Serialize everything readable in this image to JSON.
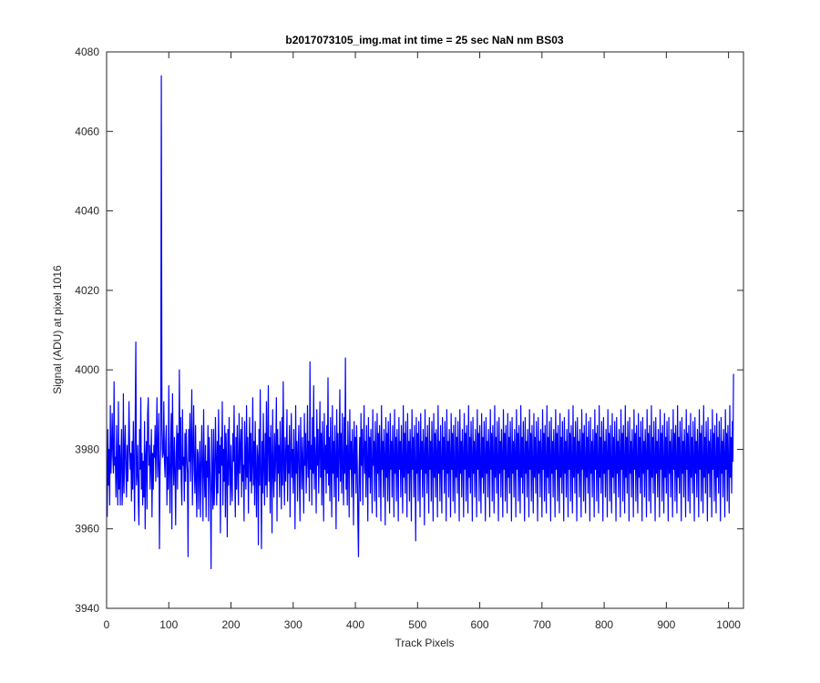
{
  "chart_data": {
    "type": "line",
    "title": "b2017073105_img.mat int time = 25 sec  NaN nm BS03",
    "xlabel": "Track Pixels",
    "ylabel": "Signal (ADU) at pixel 1016",
    "xlim": [
      0,
      1024
    ],
    "ylim": [
      3940,
      4080
    ],
    "xticks": [
      "0",
      "100",
      "200",
      "300",
      "400",
      "500",
      "600",
      "700",
      "800",
      "900",
      "1000"
    ],
    "yticks": [
      "3940",
      "3960",
      "3980",
      "4000",
      "4020",
      "4040",
      "4060",
      "4080"
    ],
    "grid": false,
    "legend": "none",
    "series": [
      {
        "color": "#0000ff",
        "x_start": 1,
        "x_step": 1,
        "values": [
          3963,
          3985,
          3971,
          3980,
          3966,
          3991,
          3974,
          3980,
          3989,
          3978,
          3974,
          3997,
          3976,
          3978,
          3968,
          3986,
          3974,
          3966,
          3992,
          3970,
          3981,
          3966,
          3978,
          3985,
          3966,
          3971,
          3994,
          3969,
          3979,
          3986,
          3975,
          3968,
          3981,
          3972,
          3978,
          3992,
          3981,
          3975,
          3979,
          3967,
          3982,
          3970,
          3987,
          3976,
          3962,
          3988,
          4007,
          3971,
          3974,
          3981,
          3967,
          3961,
          3985,
          3975,
          3993,
          3970,
          3979,
          3966,
          3977,
          3968,
          3987,
          3960,
          3978,
          3982,
          3965,
          3989,
          3993,
          3976,
          3981,
          3970,
          3977,
          3985,
          3963,
          3979,
          3970,
          3981,
          3978,
          3986,
          3972,
          3982,
          3993,
          3973,
          3979,
          3989,
          3955,
          3975,
          3980,
          4074,
          3985,
          3978,
          3979,
          3992,
          3977,
          3973,
          3982,
          3986,
          3966,
          3978,
          3970,
          3996,
          3974,
          3964,
          3981,
          3989,
          3960,
          3994,
          3978,
          3971,
          3983,
          3975,
          3961,
          3979,
          3986,
          3970,
          3984,
          3975,
          4000,
          3975,
          3988,
          3972,
          3966,
          3990,
          3976,
          3978,
          3967,
          3984,
          3972,
          3985,
          3978,
          3974,
          3953,
          3985,
          3977,
          3989,
          3972,
          3981,
          3995,
          3966,
          3979,
          3991,
          3975,
          3969,
          3986,
          3972,
          3963,
          3980,
          3979,
          3965,
          3976,
          3982,
          3963,
          3975,
          3986,
          3974,
          3962,
          3990,
          3975,
          3968,
          3981,
          3963,
          3977,
          3973,
          3986,
          3962,
          3983,
          3976,
          3969,
          3950,
          3985,
          3974,
          3965,
          3985,
          3966,
          3973,
          3988,
          3978,
          3966,
          3982,
          3969,
          3990,
          3974,
          3981,
          3959,
          3983,
          3976,
          3992,
          3966,
          3980,
          3972,
          3986,
          3963,
          3984,
          3976,
          3958,
          3985,
          3971,
          3988,
          3976,
          3966,
          3981,
          3972,
          3967,
          3984,
          3977,
          3991,
          3974,
          3963,
          3983,
          3970,
          3986,
          3975,
          3966,
          3989,
          3974,
          3980,
          3985,
          3968,
          3988,
          3972,
          3976,
          3962,
          3987,
          3978,
          3970,
          3991,
          3973,
          3983,
          3964,
          3979,
          3988,
          3972,
          3984,
          3969,
          3976,
          3993,
          3971,
          3982,
          3966,
          3987,
          3974,
          3963,
          3981,
          3978,
          3956,
          3985,
          3971,
          3995,
          3974,
          3955,
          3982,
          3969,
          3989,
          3976,
          3966,
          3984,
          3971,
          3992,
          3968,
          3980,
          3996,
          3972,
          3983,
          3964,
          3986,
          3977,
          3959,
          3990,
          3975,
          3968,
          3984,
          3972,
          3979,
          3993,
          3962,
          3985,
          3974,
          3981,
          3968,
          3987,
          3977,
          3965,
          3988,
          3971,
          3997,
          3976,
          3966,
          3983,
          3972,
          3979,
          3990,
          3967,
          3981,
          3974,
          3986,
          3963,
          3978,
          3989,
          3973,
          3980,
          3969,
          3985,
          3976,
          3960,
          3991,
          3974,
          3982,
          3967,
          3979,
          3986,
          3972,
          3962,
          3988,
          3978,
          3970,
          3983,
          3975,
          3964,
          3989,
          3976,
          3984,
          3969,
          3978,
          3991,
          3973,
          3982,
          3967,
          4002,
          3975,
          3981,
          3966,
          3988,
          3974,
          3996,
          3970,
          3983,
          3977,
          3964,
          3990,
          3976,
          3985,
          3969,
          3979,
          3992,
          3973,
          3984,
          3966,
          3987,
          3978,
          3962,
          3989,
          3975,
          3981,
          3969,
          3986,
          3974,
          3998,
          3971,
          3983,
          3967,
          3988,
          3976,
          3963,
          3991,
          3974,
          3982,
          3968,
          3986,
          3977,
          3960,
          3990,
          3973,
          3984,
          3967,
          3979,
          3995,
          3972,
          3984,
          3969,
          3989,
          3976,
          3966,
          3988,
          3974,
          4003,
          3970,
          3981,
          3966,
          3987,
          3977,
          3963,
          3990,
          3975,
          3982,
          3968,
          3985,
          3978,
          3961,
          3987,
          3974,
          3983,
          3969,
          3986,
          3977,
          3962,
          3953,
          3975,
          3983,
          3967,
          3989,
          3976,
          3985,
          3966,
          3979,
          3991,
          3974,
          3982,
          3968,
          3986,
          3977,
          3962,
          3988,
          3973,
          3983,
          3969,
          3985,
          3975,
          3964,
          3990,
          3976,
          3982,
          3967,
          3987,
          3978,
          3963,
          3989,
          3974,
          3984,
          3968,
          3986,
          3977,
          3962,
          3991,
          3975,
          3982,
          3968,
          3985,
          3978,
          3961,
          3988,
          3973,
          3984,
          3967,
          3987,
          3976,
          3964,
          3989,
          3975,
          3982,
          3968,
          3986,
          3977,
          3963,
          3990,
          3974,
          3983,
          3967,
          3985,
          3978,
          3962,
          3988,
          3975,
          3982,
          3968,
          3986,
          3976,
          3964,
          3991,
          3973,
          3984,
          3969,
          3987,
          3977,
          3963,
          3989,
          3974,
          3982,
          3967,
          3985,
          3978,
          3962,
          3990,
          3975,
          3983,
          3968,
          3986,
          3976,
          3957,
          3988,
          3974,
          3984,
          3967,
          3987,
          3977,
          3963,
          3989,
          3975,
          3982,
          3968,
          3985,
          3978,
          3961,
          3990,
          3974,
          3983,
          3969,
          3986,
          3976,
          3964,
          3988,
          3975,
          3982,
          3967,
          3987,
          3977,
          3962,
          3989,
          3973,
          3984,
          3968,
          3985,
          3978,
          3963,
          3991,
          3974,
          3982,
          3967,
          3986,
          3976,
          3964,
          3988,
          3975,
          3983,
          3969,
          3987,
          3977,
          3962,
          3990,
          3974,
          3982,
          3968,
          3985,
          3978,
          3963,
          3989,
          3975,
          3984,
          3967,
          3986,
          3976,
          3964,
          3988,
          3973,
          3983,
          3969,
          3987,
          3977,
          3962,
          3990,
          3974,
          3982,
          3968,
          3985,
          3978,
          3963,
          3989,
          3975,
          3984,
          3967,
          3986,
          3976,
          3964,
          3991,
          3973,
          3983,
          3969,
          3987,
          3977,
          3962,
          3988,
          3974,
          3982,
          3968,
          3985,
          3978,
          3963,
          3990,
          3975,
          3984,
          3967,
          3986,
          3976,
          3964,
          3989,
          3973,
          3983,
          3969,
          3987,
          3977,
          3962,
          3988,
          3974,
          3982,
          3968,
          3985,
          3978,
          3963,
          3990,
          3975,
          3984,
          3967,
          3986,
          3976,
          3964,
          3991,
          3973,
          3983,
          3969,
          3987,
          3977,
          3962,
          3988,
          3974,
          3982,
          3968,
          3985,
          3978,
          3963,
          3990,
          3975,
          3984,
          3967,
          3986,
          3976,
          3964,
          3989,
          3973,
          3983,
          3969,
          3987,
          3977,
          3962,
          3988,
          3974,
          3982,
          3968,
          3985,
          3978,
          3963,
          3990,
          3975,
          3984,
          3967,
          3986,
          3976,
          3964,
          3991,
          3973,
          3983,
          3969,
          3987,
          3977,
          3962,
          3988,
          3974,
          3982,
          3968,
          3985,
          3978,
          3963,
          3990,
          3975,
          3984,
          3967,
          3986,
          3976,
          3964,
          3989,
          3973,
          3983,
          3969,
          3987,
          3977,
          3962,
          3988,
          3974,
          3982,
          3968,
          3985,
          3978,
          3963,
          3990,
          3975,
          3984,
          3967,
          3986,
          3976,
          3964,
          3991,
          3973,
          3983,
          3969,
          3987,
          3977,
          3962,
          3988,
          3974,
          3982,
          3968,
          3985,
          3978,
          3963,
          3990,
          3975,
          3984,
          3967,
          3986,
          3976,
          3964,
          3989,
          3973,
          3983,
          3969,
          3987,
          3977,
          3962,
          3988,
          3974,
          3982,
          3968,
          3985,
          3978,
          3963,
          3990,
          3975,
          3984,
          3967,
          3986,
          3976,
          3964,
          3991,
          3973,
          3983,
          3969,
          3987,
          3977,
          3962,
          3988,
          3974,
          3982,
          3968,
          3985,
          3978,
          3963,
          3990,
          3975,
          3984,
          3967,
          3986,
          3976,
          3964,
          3989,
          3973,
          3983,
          3969,
          3987,
          3977,
          3962,
          3988,
          3974,
          3982,
          3968,
          3985,
          3978,
          3963,
          3990,
          3975,
          3984,
          3967,
          3986,
          3976,
          3964,
          3991,
          3973,
          3983,
          3969,
          3987,
          3977,
          3962,
          3988,
          3974,
          3982,
          3968,
          3985,
          3978,
          3963,
          3990,
          3975,
          3984,
          3967,
          3986,
          3976,
          3964,
          3989,
          3973,
          3983,
          3969,
          3987,
          3977,
          3962,
          3988,
          3974,
          3982,
          3968,
          3985,
          3978,
          3963,
          3990,
          3975,
          3984,
          3967,
          3986,
          3976,
          3964,
          3991,
          3973,
          3983,
          3969,
          3987,
          3977,
          3962,
          3988,
          3974,
          3982,
          3968,
          3985,
          3978,
          3963,
          3990,
          3975,
          3984,
          3967,
          3986,
          3976,
          3964,
          3989,
          3973,
          3983,
          3969,
          3987,
          3977,
          3962,
          3988,
          3974,
          3982,
          3968,
          3985,
          3978,
          3963,
          3990,
          3975,
          3984,
          3967,
          3986,
          3976,
          3964,
          3991,
          3973,
          3983,
          3969,
          3987,
          3977,
          3962,
          3988,
          3974,
          3982,
          3968,
          3985,
          3978,
          3963,
          3990,
          3975,
          3984,
          3967,
          3986,
          3976,
          3964,
          3989,
          3973,
          3983,
          3969,
          3987,
          3977,
          3962,
          3988,
          3974,
          3982,
          3968,
          3985,
          3978,
          3963,
          3990,
          3975,
          3984,
          3967,
          3986,
          3976,
          3964,
          3991,
          3973,
          3983,
          3969,
          3987,
          3977,
          3962,
          3988,
          3974,
          3982,
          3968,
          3985,
          3978,
          3963,
          3990,
          3975,
          3984,
          3967,
          3986,
          3976,
          3964,
          3989,
          3973,
          3983,
          3969,
          3987,
          3977,
          3962,
          3988,
          3974,
          3982,
          3968,
          3985,
          3978,
          3963,
          3990,
          3975,
          3984,
          3967,
          3986,
          3976,
          3964,
          3991,
          3973,
          3983,
          3969,
          3987,
          3977,
          3962,
          3988,
          3974,
          3982,
          3968,
          3985,
          3978,
          3963,
          3990,
          3975,
          3984,
          3967,
          3986,
          3976,
          3964,
          3989,
          3973,
          3983,
          3969,
          3987,
          3977,
          3962,
          3988,
          3974,
          3982,
          3968,
          3985,
          3978,
          3963,
          3990,
          3975,
          3984,
          3967,
          3986,
          3976,
          3964,
          3991,
          3973,
          3983,
          3969,
          3987,
          3977,
          3999
        ]
      }
    ]
  }
}
